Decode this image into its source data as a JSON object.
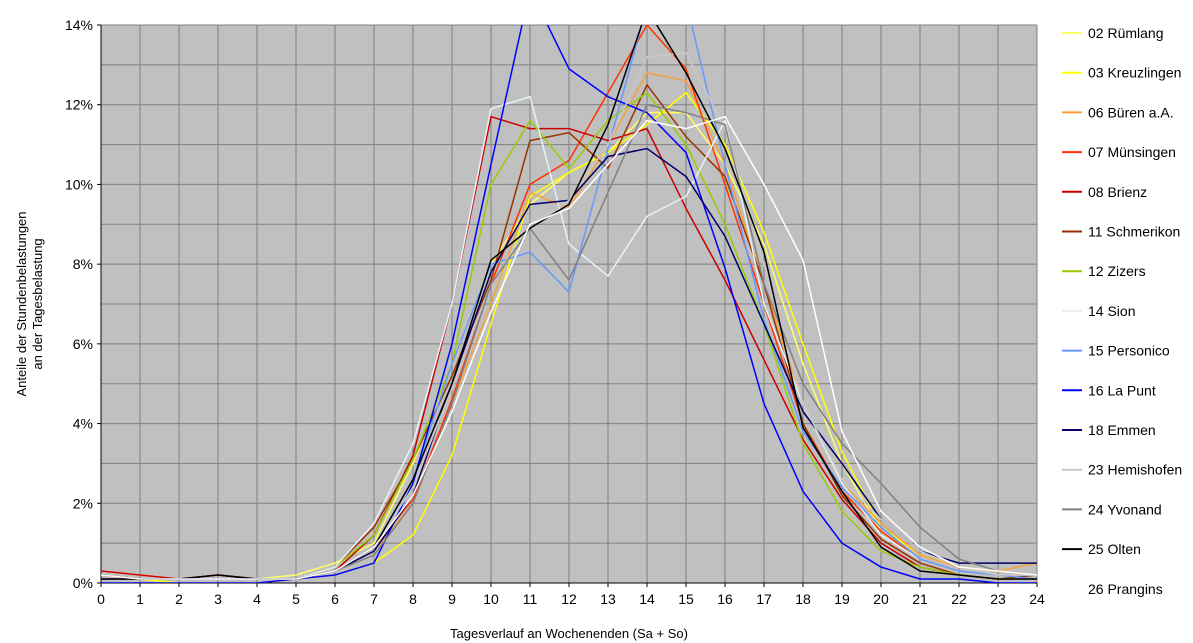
{
  "chart_data": {
    "type": "line",
    "title": "",
    "xlabel": "Tagesverlauf an Wochenenden (Sa + So)",
    "ylabel_lines": [
      "Anteile der Stundenbelastungen",
      "an der Tagesbelastung"
    ],
    "x": [
      0,
      1,
      2,
      3,
      4,
      5,
      6,
      7,
      8,
      9,
      10,
      11,
      12,
      13,
      14,
      15,
      16,
      17,
      18,
      19,
      20,
      21,
      22,
      23,
      24
    ],
    "xlim": [
      0,
      24
    ],
    "ylim": [
      0,
      14
    ],
    "yticks": [
      0,
      2,
      4,
      6,
      8,
      10,
      12,
      14
    ],
    "ytick_labels": [
      "0%",
      "2%",
      "4%",
      "6%",
      "8%",
      "10%",
      "12%",
      "14%"
    ],
    "y_unit": "%",
    "grid": true,
    "plot_background": "#c0c0c0",
    "grid_color": "#808080",
    "legend_position": "right",
    "series": [
      {
        "name": "02 Rümlang",
        "color": "#ffff66",
        "values": [
          0.3,
          0.2,
          0.1,
          0.1,
          0.1,
          0.2,
          0.5,
          1.0,
          3.0,
          5.5,
          8.0,
          9.5,
          10.3,
          10.8,
          11.8,
          11.8,
          10.5,
          8.5,
          5.5,
          3.0,
          1.3,
          0.6,
          0.3,
          0.2,
          0.1
        ]
      },
      {
        "name": "03 Kreuzlingen",
        "color": "#ffff00",
        "values": [
          0.1,
          0.1,
          0.0,
          0.0,
          0.0,
          0.1,
          0.2,
          0.5,
          1.2,
          3.2,
          6.5,
          9.7,
          10.3,
          10.8,
          11.5,
          12.3,
          11.0,
          8.8,
          6.0,
          3.3,
          1.4,
          0.7,
          0.4,
          0.3,
          0.2
        ]
      },
      {
        "name": "06 Büren a.A.",
        "color": "#f7a23c",
        "values": [
          0.2,
          0.1,
          0.1,
          0.1,
          0.1,
          0.1,
          0.3,
          0.8,
          2.0,
          4.5,
          7.0,
          9.8,
          9.4,
          11.0,
          12.8,
          12.6,
          10.5,
          7.5,
          4.5,
          2.5,
          1.5,
          0.7,
          0.4,
          0.3,
          0.5
        ]
      },
      {
        "name": "07 Münsingen",
        "color": "#ff3300",
        "values": [
          0.2,
          0.1,
          0.1,
          0.1,
          0.1,
          0.1,
          0.3,
          0.9,
          2.1,
          4.6,
          7.5,
          10.0,
          10.6,
          12.3,
          14.0,
          12.9,
          10.0,
          7.0,
          4.0,
          2.3,
          1.3,
          0.6,
          0.3,
          0.2,
          0.2
        ]
      },
      {
        "name": "08 Brienz",
        "color": "#cc0000",
        "values": [
          0.3,
          0.2,
          0.1,
          0.2,
          0.1,
          0.1,
          0.3,
          1.2,
          3.2,
          7.0,
          11.7,
          11.4,
          11.4,
          11.1,
          11.4,
          9.4,
          7.6,
          5.6,
          3.6,
          2.1,
          1.0,
          0.4,
          0.2,
          0.1,
          0.1
        ]
      },
      {
        "name": "11 Schmerikon",
        "color": "#993300",
        "values": [
          0.2,
          0.1,
          0.1,
          0.2,
          0.1,
          0.1,
          0.4,
          1.4,
          3.1,
          5.2,
          7.6,
          11.1,
          11.3,
          10.4,
          12.5,
          11.2,
          10.2,
          7.5,
          4.0,
          2.2,
          1.1,
          0.5,
          0.2,
          0.1,
          0.2
        ]
      },
      {
        "name": "12 Zizers",
        "color": "#99cc00",
        "values": [
          0.1,
          0.1,
          0.1,
          0.1,
          0.1,
          0.1,
          0.4,
          1.2,
          3.1,
          5.5,
          10.0,
          11.6,
          10.4,
          11.6,
          12.3,
          11.0,
          9.0,
          6.5,
          3.5,
          1.8,
          0.8,
          0.4,
          0.2,
          0.1,
          0.1
        ]
      },
      {
        "name": "14 Sion",
        "color": "#e6f2fa",
        "values": [
          0.1,
          0.1,
          0.1,
          0.1,
          0.1,
          0.1,
          0.4,
          1.5,
          3.5,
          7.0,
          11.9,
          12.2,
          8.5,
          7.7,
          9.2,
          9.7,
          11.6,
          7.0,
          4.5,
          2.5,
          1.2,
          0.6,
          0.3,
          0.2,
          0.2
        ]
      },
      {
        "name": "15 Personico",
        "color": "#6699ff",
        "values": [
          0.1,
          0.1,
          0.1,
          0.1,
          0.1,
          0.1,
          0.3,
          0.9,
          2.6,
          5.5,
          8.0,
          8.3,
          7.3,
          10.9,
          14.5,
          14.6,
          10.5,
          6.6,
          3.8,
          2.4,
          1.4,
          0.6,
          0.3,
          0.2,
          0.1
        ]
      },
      {
        "name": "16 La Punt",
        "color": "#0000ff",
        "values": [
          0.0,
          0.0,
          0.0,
          0.0,
          0.0,
          0.1,
          0.2,
          0.5,
          2.5,
          6.0,
          10.5,
          14.9,
          12.9,
          12.2,
          11.8,
          10.8,
          7.9,
          4.5,
          2.3,
          1.0,
          0.4,
          0.1,
          0.1,
          0.0,
          0.0
        ]
      },
      {
        "name": "18 Emmen",
        "color": "#000066",
        "values": [
          0.1,
          0.1,
          0.1,
          0.1,
          0.1,
          0.1,
          0.3,
          0.8,
          2.2,
          5.0,
          7.8,
          9.5,
          9.6,
          10.7,
          10.9,
          10.2,
          8.7,
          6.5,
          4.3,
          3.0,
          1.6,
          0.8,
          0.5,
          0.5,
          0.5
        ]
      },
      {
        "name": "23 Hemishofen",
        "color": "#c8c8c8",
        "values": [
          0.1,
          0.1,
          0.1,
          0.1,
          0.1,
          0.1,
          0.3,
          0.9,
          2.4,
          4.9,
          7.5,
          9.0,
          9.6,
          11.0,
          13.2,
          13.3,
          11.4,
          8.0,
          4.5,
          2.6,
          1.6,
          0.8,
          0.4,
          0.2,
          0.2
        ]
      },
      {
        "name": "24 Yvonand",
        "color": "#808080",
        "values": [
          0.1,
          0.1,
          0.1,
          0.1,
          0.1,
          0.1,
          0.3,
          0.7,
          2.0,
          4.5,
          7.5,
          8.9,
          7.6,
          9.8,
          12.0,
          11.8,
          11.5,
          7.5,
          5.0,
          3.5,
          2.5,
          1.4,
          0.6,
          0.3,
          0.2
        ]
      },
      {
        "name": "25 Olten",
        "color": "#000000",
        "values": [
          0.1,
          0.1,
          0.1,
          0.2,
          0.1,
          0.1,
          0.3,
          0.9,
          2.6,
          5.0,
          8.1,
          8.9,
          9.5,
          11.5,
          14.4,
          12.8,
          10.9,
          8.3,
          3.9,
          2.3,
          0.9,
          0.3,
          0.2,
          0.1,
          0.1
        ]
      },
      {
        "name": "26 Prangins",
        "color": "#ffffff",
        "values": [
          0.2,
          0.1,
          0.1,
          0.1,
          0.1,
          0.1,
          0.3,
          0.9,
          2.2,
          4.3,
          6.8,
          9.0,
          9.4,
          10.5,
          11.6,
          11.4,
          11.7,
          10.0,
          8.1,
          3.8,
          1.8,
          0.9,
          0.4,
          0.3,
          0.2
        ]
      }
    ]
  }
}
